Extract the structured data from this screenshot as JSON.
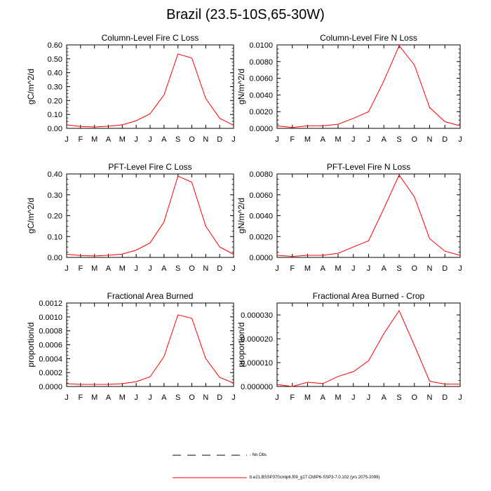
{
  "page_title": "Brazil (23.5-10S,65-30W)",
  "months": [
    "J",
    "F",
    "M",
    "A",
    "M",
    "J",
    "J",
    "A",
    "S",
    "O",
    "N",
    "D",
    "J"
  ],
  "line_color": "#ff0000",
  "legend": {
    "obs_label": "No Obs",
    "model_label": "b.e21.BSSP370cmip6.f09_g17.CMIP6-SSP3-7.0.102 (yrs 2075-2099)"
  },
  "chart_data": [
    {
      "type": "line",
      "title": "Column-Level Fire C Loss",
      "ylabel": "gC/m^2/d",
      "ylim": [
        0,
        0.6
      ],
      "yticks": [
        "0.00",
        "0.10",
        "0.20",
        "0.30",
        "0.40",
        "0.50",
        "0.60"
      ],
      "y": [
        0.025,
        0.013,
        0.01,
        0.015,
        0.025,
        0.055,
        0.105,
        0.24,
        0.535,
        0.505,
        0.215,
        0.072,
        0.022
      ]
    },
    {
      "type": "line",
      "title": "Column-Level Fire N Loss",
      "ylabel": "gN/m^2/d",
      "ylim": [
        0,
        0.01
      ],
      "yticks": [
        "0.0000",
        "0.0020",
        "0.0040",
        "0.0060",
        "0.0080",
        "0.0100"
      ],
      "y": [
        0.0003,
        0.0001,
        0.0003,
        0.0003,
        0.0005,
        0.0012,
        0.002,
        0.0057,
        0.0099,
        0.0076,
        0.0025,
        0.0008,
        0.0003
      ]
    },
    {
      "type": "line",
      "title": "PFT-Level Fire C Loss",
      "ylabel": "gC/m^2/d",
      "ylim": [
        0,
        0.4
      ],
      "yticks": [
        "0.00",
        "0.10",
        "0.20",
        "0.30",
        "0.40"
      ],
      "y": [
        0.015,
        0.009,
        0.007,
        0.01,
        0.016,
        0.035,
        0.07,
        0.17,
        0.39,
        0.36,
        0.15,
        0.05,
        0.015
      ]
    },
    {
      "type": "line",
      "title": "PFT-Level Fire N Loss",
      "ylabel": "gN/m^2/d",
      "ylim": [
        0,
        0.008
      ],
      "yticks": [
        "0.0000",
        "0.0020",
        "0.0040",
        "0.0060",
        "0.0080"
      ],
      "y": [
        0.0002,
        0.0001,
        0.0002,
        0.0002,
        0.0004,
        0.001,
        0.0016,
        0.0047,
        0.0079,
        0.0058,
        0.0018,
        0.0006,
        0.0002
      ]
    },
    {
      "type": "line",
      "title": "Fractional Area Burned",
      "ylabel": "proportion/d",
      "ylim": [
        0,
        0.0012
      ],
      "yticks": [
        "0.0000",
        "0.0002",
        "0.0004",
        "0.0006",
        "0.0008",
        "0.0010",
        "0.0012"
      ],
      "y": [
        4e-05,
        3e-05,
        3e-05,
        3e-05,
        4e-05,
        7e-05,
        0.00014,
        0.00043,
        0.00103,
        0.00098,
        0.0004,
        0.00013,
        5e-05
      ]
    },
    {
      "type": "line",
      "title": "Fractional Area Burned - Crop",
      "ylabel": "proportion/d",
      "ylim": [
        0,
        3.5e-05
      ],
      "yticks": [
        "0.000000",
        "0.000010",
        "0.000020",
        "0.000030"
      ],
      "ytickvals": [
        0,
        1e-05,
        2e-05,
        3e-05
      ],
      "y": [
        8e-07,
        0.0,
        1.8e-06,
        1.2e-06,
        4.2e-06,
        6.2e-06,
        1.08e-05,
        2.22e-05,
        3.18e-05,
        1.72e-05,
        2.2e-06,
        1e-06,
        1e-06
      ]
    }
  ]
}
